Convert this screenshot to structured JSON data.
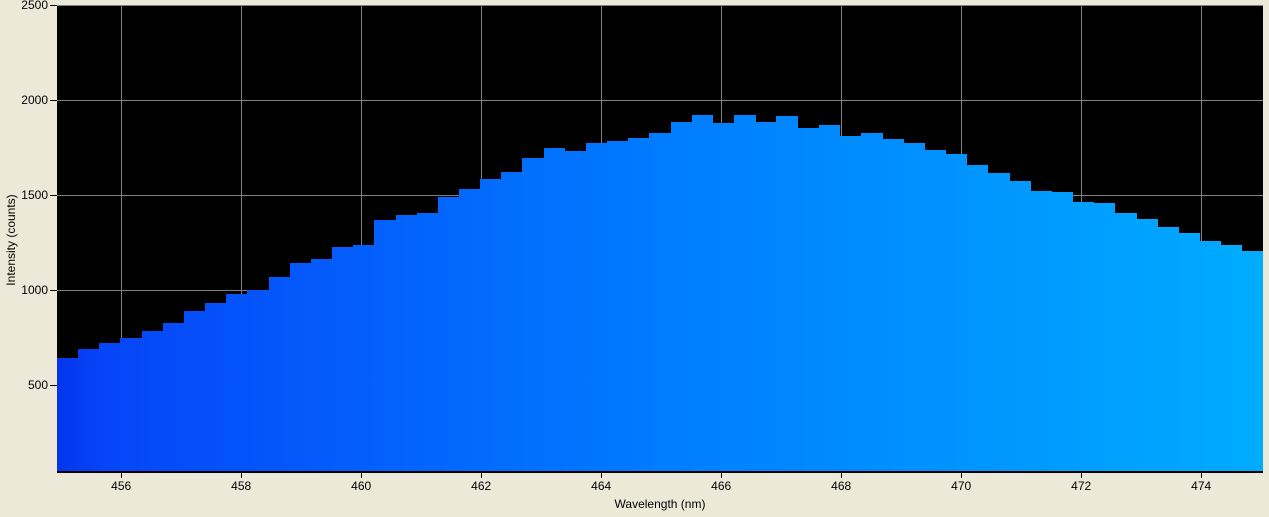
{
  "window": {
    "background_color": "#ECE9D8",
    "plot_background_color": "#000000",
    "grid_color": "#808080",
    "text_color": "#000000"
  },
  "chart_data": {
    "type": "area",
    "style": "stepped-spectrum-histogram",
    "title": "",
    "xlabel": "Wavelength (nm)",
    "ylabel": "Intensity (counts)",
    "x_ticks": [
      456,
      458,
      460,
      462,
      464,
      466,
      468,
      470,
      472,
      474
    ],
    "y_ticks": [
      500,
      1000,
      1500,
      2000,
      2500
    ],
    "xlim": [
      454.93,
      475.03
    ],
    "ylim": [
      47,
      2500
    ],
    "grid": true,
    "legend": false,
    "peak_value": 1921,
    "peak_wavelength_nm": 465.69,
    "fill_gradient": [
      "#0536EC",
      "#0645F8",
      "#007CFF",
      "#00ACFF"
    ],
    "x": [
      455.11,
      455.46,
      455.81,
      456.16,
      456.52,
      456.87,
      457.22,
      457.58,
      457.93,
      458.28,
      458.63,
      458.99,
      459.34,
      459.69,
      460.04,
      460.4,
      460.75,
      461.1,
      461.45,
      461.81,
      462.16,
      462.51,
      462.87,
      463.22,
      463.57,
      463.92,
      464.28,
      464.63,
      464.98,
      465.33,
      465.69,
      466.04,
      466.39,
      466.74,
      467.1,
      467.45,
      467.8,
      468.16,
      468.51,
      468.86,
      469.21,
      469.57,
      469.92,
      470.27,
      470.62,
      470.98,
      471.33,
      471.68,
      472.04,
      472.39,
      472.74,
      473.09,
      473.45,
      473.8,
      474.15,
      474.5,
      474.86
    ],
    "values": [
      640,
      690,
      720,
      746,
      784,
      826,
      888,
      930,
      981,
      1000,
      1070,
      1140,
      1163,
      1228,
      1237,
      1368,
      1395,
      1404,
      1491,
      1530,
      1583,
      1623,
      1693,
      1746,
      1733,
      1775,
      1786,
      1798,
      1825,
      1886,
      1921,
      1880,
      1921,
      1886,
      1916,
      1850,
      1866,
      1809,
      1825,
      1796,
      1772,
      1738,
      1716,
      1658,
      1614,
      1575,
      1523,
      1517,
      1465,
      1459,
      1407,
      1372,
      1330,
      1298,
      1259,
      1237,
      1207
    ]
  }
}
